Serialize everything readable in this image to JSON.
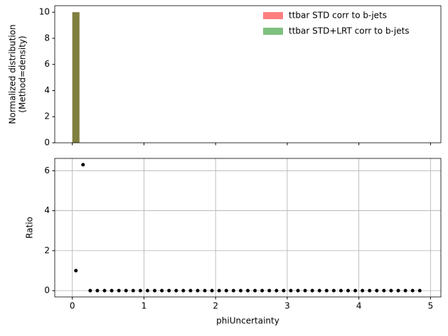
{
  "chart_data": [
    {
      "type": "histogram",
      "ylabel": [
        "Normalized distribution",
        "(Method=density)"
      ],
      "bins": [
        0,
        0.1,
        0.2,
        0.3,
        0.4,
        0.5,
        0.6,
        0.7,
        0.8,
        0.9,
        1,
        1.1,
        1.2,
        1.3,
        1.4,
        1.5,
        1.6,
        1.7,
        1.8,
        1.9,
        2,
        2.1,
        2.2,
        2.3,
        2.4,
        2.5,
        2.6,
        2.7,
        2.8,
        2.9,
        3,
        3.1,
        3.2,
        3.3,
        3.4,
        3.5,
        3.6,
        3.7,
        3.8,
        3.9,
        4,
        4.1,
        4.2,
        4.3,
        4.4,
        4.5,
        4.6,
        4.7,
        4.8,
        4.9
      ],
      "series": [
        {
          "name": "ttbar STD corr to b-jets",
          "color": "red",
          "values": [
            10,
            0,
            0,
            0,
            0,
            0,
            0,
            0,
            0,
            0,
            0,
            0,
            0,
            0,
            0,
            0,
            0,
            0,
            0,
            0,
            0,
            0,
            0,
            0,
            0,
            0,
            0,
            0,
            0,
            0,
            0,
            0,
            0,
            0,
            0,
            0,
            0,
            0,
            0,
            0,
            0,
            0,
            0,
            0,
            0,
            0,
            0,
            0,
            0
          ]
        },
        {
          "name": "ttbar STD+LRT corr to b-jets",
          "color": "green",
          "values": [
            10,
            0,
            0,
            0,
            0,
            0,
            0,
            0,
            0,
            0,
            0,
            0,
            0,
            0,
            0,
            0,
            0,
            0,
            0,
            0,
            0,
            0,
            0,
            0,
            0,
            0,
            0,
            0,
            0,
            0,
            0,
            0,
            0,
            0,
            0,
            0,
            0,
            0,
            0,
            0,
            0,
            0,
            0,
            0,
            0,
            0,
            0,
            0,
            0
          ]
        }
      ],
      "xlim": [
        -0.245,
        5.145
      ],
      "xticks": [
        0,
        1,
        2,
        3,
        4,
        5
      ],
      "ylim": [
        0,
        10.5
      ],
      "yticks": [
        0,
        2,
        4,
        6,
        8,
        10
      ],
      "legend": "upper right",
      "grid": false
    },
    {
      "type": "scatter",
      "xlabel": "phiUncertainty",
      "ylabel": [
        "Ratio"
      ],
      "color": "black",
      "x": [
        0.05,
        0.15,
        0.25,
        0.35,
        0.45,
        0.55,
        0.65,
        0.75,
        0.85,
        0.95,
        1.05,
        1.15,
        1.25,
        1.35,
        1.45,
        1.55,
        1.65,
        1.75,
        1.85,
        1.95,
        2.05,
        2.15,
        2.25,
        2.35,
        2.45,
        2.55,
        2.65,
        2.75,
        2.85,
        2.95,
        3.05,
        3.15,
        3.25,
        3.35,
        3.45,
        3.55,
        3.65,
        3.75,
        3.85,
        3.95,
        4.05,
        4.15,
        4.25,
        4.35,
        4.45,
        4.55,
        4.65,
        4.75,
        4.85
      ],
      "values": [
        1,
        6.3,
        0,
        0,
        0,
        0,
        0,
        0,
        0,
        0,
        0,
        0,
        0,
        0,
        0,
        0,
        0,
        0,
        0,
        0,
        0,
        0,
        0,
        0,
        0,
        0,
        0,
        0,
        0,
        0,
        0,
        0,
        0,
        0,
        0,
        0,
        0,
        0,
        0,
        0,
        0,
        0,
        0,
        0,
        0,
        0,
        0,
        0,
        0
      ],
      "xlim": [
        -0.245,
        5.145
      ],
      "xticks": [
        0,
        1,
        2,
        3,
        4,
        5
      ],
      "ylim": [
        -0.315,
        6.615
      ],
      "yticks": [
        0,
        2,
        4,
        6
      ],
      "grid": true
    }
  ]
}
